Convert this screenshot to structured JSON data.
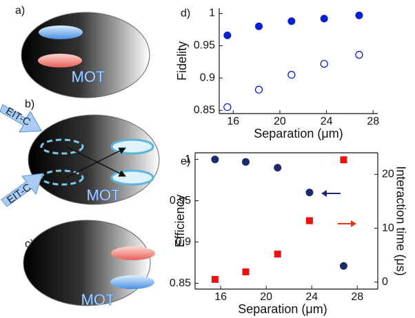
{
  "panels": [
    {
      "label": "a)",
      "text": "MOT"
    },
    {
      "label": "b)",
      "text": "MOT",
      "arrows": [
        "EIT-C",
        "EIT-C"
      ]
    },
    {
      "label": "c)",
      "text": "MOT"
    }
  ],
  "chart_data": [
    {
      "type": "scatter",
      "label": "d)",
      "xlabel": "Separation (μm)",
      "ylabel": "Fidelity",
      "x": [
        15.5,
        18.2,
        21,
        23.8,
        26.8
      ],
      "series": [
        {
          "color": "#0a1fd1",
          "marker": "circle",
          "values": [
            0.966,
            0.98,
            0.988,
            0.992,
            0.997
          ]
        },
        {
          "color": "#0a1fd1",
          "marker": "open-circle",
          "values": [
            0.855,
            0.882,
            0.905,
            0.922,
            0.936
          ]
        }
      ],
      "xlim": [
        14.8,
        28.4
      ],
      "xticks": [
        16,
        20,
        24,
        28
      ],
      "ylim": [
        0.845,
        1.008
      ],
      "yticks": [
        0.85,
        0.9,
        0.95,
        1
      ]
    },
    {
      "type": "scatter",
      "label": "e)",
      "xlabel": "Separation (μm)",
      "ylabel": "Efficiency",
      "y2label": "Interaction time (μs)",
      "x": [
        15.5,
        18.2,
        21,
        23.8,
        26.8
      ],
      "series": [
        {
          "color": "#1a2a6c",
          "marker": "circle",
          "values": [
            1.0,
            0.997,
            0.99,
            0.96,
            0.871
          ]
        },
        {
          "color": "#ee1111",
          "marker": "square",
          "axis": "y2",
          "values": [
            0.5,
            1.9,
            5.2,
            11.4,
            22.7
          ]
        }
      ],
      "xlim": [
        13.75,
        29.8
      ],
      "xticks": [
        16,
        20,
        24,
        28
      ],
      "ylim": [
        0.843,
        1.008
      ],
      "yticks": [
        0.85,
        0.9,
        0.95,
        1
      ],
      "y2lim": [
        -1.3,
        24
      ],
      "y2ticks": [
        0,
        10,
        20
      ]
    }
  ]
}
